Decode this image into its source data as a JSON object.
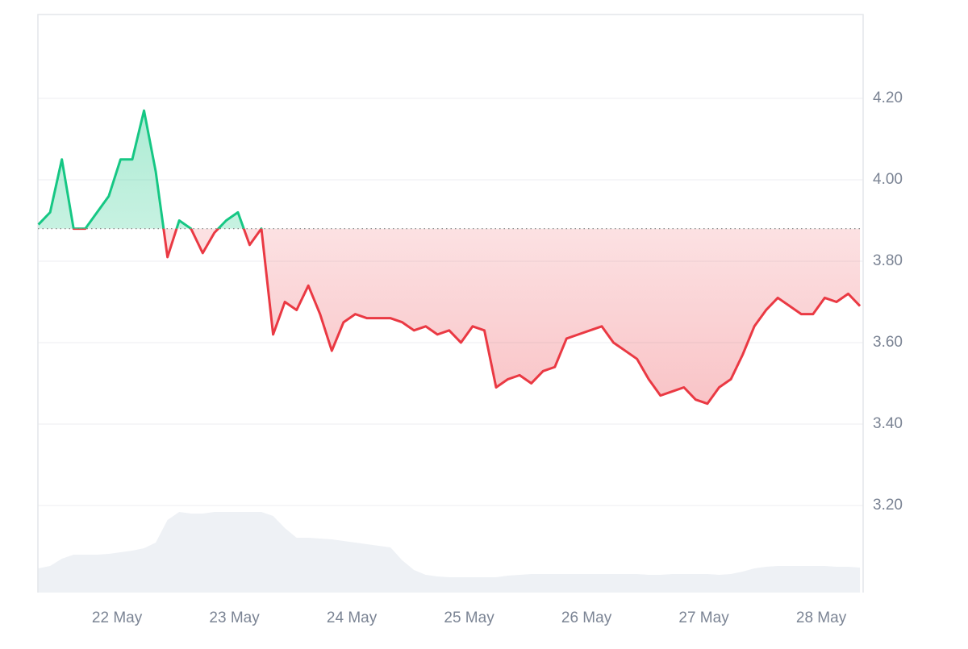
{
  "chart_data": {
    "type": "line",
    "x": [
      21.33,
      21.43,
      21.53,
      21.63,
      21.73,
      21.83,
      21.93,
      22.03,
      22.13,
      22.23,
      22.33,
      22.43,
      22.53,
      22.63,
      22.73,
      22.83,
      22.93,
      23.03,
      23.13,
      23.23,
      23.33,
      23.43,
      23.53,
      23.63,
      23.73,
      23.83,
      23.93,
      24.03,
      24.13,
      24.23,
      24.33,
      24.43,
      24.53,
      24.63,
      24.73,
      24.83,
      24.93,
      25.03,
      25.13,
      25.23,
      25.33,
      25.43,
      25.53,
      25.63,
      25.73,
      25.83,
      25.93,
      26.03,
      26.13,
      26.23,
      26.33,
      26.43,
      26.53,
      26.63,
      26.73,
      26.83,
      26.93,
      27.03,
      27.13,
      27.23,
      27.33,
      27.43,
      27.53,
      27.63,
      27.73,
      27.83,
      27.93,
      28.03,
      28.13,
      28.23,
      28.33
    ],
    "series": [
      {
        "values": [
          3.89,
          3.92,
          4.05,
          3.88,
          3.88,
          3.92,
          3.96,
          4.05,
          4.05,
          4.17,
          4.02,
          3.81,
          3.9,
          3.88,
          3.82,
          3.87,
          3.9,
          3.92,
          3.84,
          3.88,
          3.62,
          3.7,
          3.68,
          3.74,
          3.67,
          3.58,
          3.65,
          3.67,
          3.66,
          3.66,
          3.66,
          3.65,
          3.63,
          3.64,
          3.62,
          3.63,
          3.6,
          3.64,
          3.63,
          3.49,
          3.51,
          3.52,
          3.5,
          3.53,
          3.54,
          3.61,
          3.62,
          3.63,
          3.64,
          3.6,
          3.58,
          3.56,
          3.51,
          3.47,
          3.48,
          3.49,
          3.46,
          3.45,
          3.49,
          3.51,
          3.57,
          3.64,
          3.68,
          3.71,
          3.69,
          3.67,
          3.67,
          3.71,
          3.7,
          3.72,
          3.69
        ],
        "color_up": "#16c784",
        "color_down": "#ea3943"
      },
      {
        "values": [
          30,
          33,
          42,
          47,
          47,
          47,
          48,
          50,
          52,
          55,
          62,
          90,
          100,
          98,
          98,
          100,
          100,
          100,
          100,
          100,
          95,
          80,
          68,
          68,
          67,
          66,
          64,
          62,
          60,
          58,
          56,
          40,
          28,
          22,
          20,
          19,
          19,
          19,
          19,
          19,
          21,
          22,
          23,
          23,
          23,
          23,
          23,
          23,
          23,
          23,
          23,
          23,
          22,
          22,
          23,
          23,
          23,
          23,
          22,
          23,
          26,
          30,
          32,
          33,
          33,
          33,
          33,
          33,
          32,
          32,
          31
        ],
        "axis": "volume",
        "color": "#eef1f5"
      }
    ],
    "baseline": 3.88,
    "xlim": [
      21.326,
      28.357
    ],
    "xticks": [
      {
        "value": 22,
        "label": "22 May"
      },
      {
        "value": 23,
        "label": "23 May"
      },
      {
        "value": 24,
        "label": "24 May"
      },
      {
        "value": 25,
        "label": "25 May"
      },
      {
        "value": 26,
        "label": "26 May"
      },
      {
        "value": 27,
        "label": "27 May"
      },
      {
        "value": 28,
        "label": "28 May"
      }
    ],
    "ylim": [
      2.986,
      4.406
    ],
    "yticks": [
      {
        "value": 3.2,
        "label": "3.20"
      },
      {
        "value": 3.4,
        "label": "3.40"
      },
      {
        "value": 3.6,
        "label": "3.60"
      },
      {
        "value": 3.8,
        "label": "3.80"
      },
      {
        "value": 4.0,
        "label": "4.00"
      },
      {
        "value": 4.2,
        "label": "4.20"
      }
    ],
    "volume_lim": [
      0,
      717
    ],
    "grid": true
  }
}
